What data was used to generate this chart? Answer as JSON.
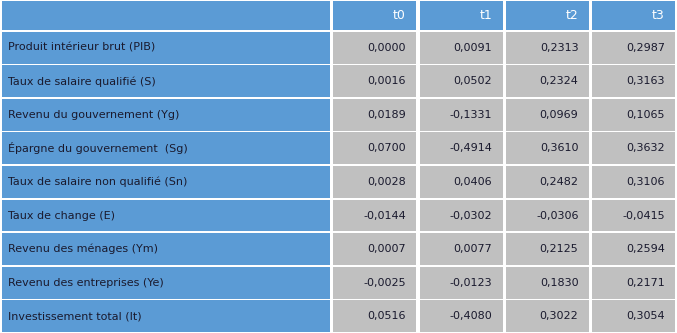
{
  "columns": [
    "",
    "t0",
    "t1",
    "t2",
    "t3"
  ],
  "rows": [
    [
      "Produit intérieur brut (PIB)",
      "0,0000",
      "0,0091",
      "0,2313",
      "0,2987"
    ],
    [
      "Taux de salaire qualifié (S)",
      "0,0016",
      "0,0502",
      "0,2324",
      "0,3163"
    ],
    [
      "Revenu du gouvernement (Yg)",
      "0,0189",
      "-0,1331",
      "0,0969",
      "0,1065"
    ],
    [
      "Épargne du gouvernement  (Sg)",
      "0,0700",
      "-0,4914",
      "0,3610",
      "0,3632"
    ],
    [
      "Taux de salaire non qualifié (Sn)",
      "0,0028",
      "0,0406",
      "0,2482",
      "0,3106"
    ],
    [
      "Taux de change (E)",
      "-0,0144",
      "-0,0302",
      "-0,0306",
      "-0,0415"
    ],
    [
      "Revenu des ménages (Ym)",
      "0,0007",
      "0,0077",
      "0,2125",
      "0,2594"
    ],
    [
      "Revenu des entreprises (Ye)",
      "-0,0025",
      "-0,0123",
      "0,1830",
      "0,2171"
    ],
    [
      "Investissement total (It)",
      "0,0516",
      "-0,4080",
      "0,3022",
      "0,3054"
    ]
  ],
  "header_bg": "#5B9BD5",
  "header_text_color": "#FFFFFF",
  "label_col_bg": "#5B9BD5",
  "label_col_text_color": "#1a1a2e",
  "data_cell_bg": "#C0C0C0",
  "data_cell_text_color": "#1a1a2e",
  "separator_color": "#FFFFFF",
  "figsize": [
    6.77,
    3.33
  ],
  "dpi": 100,
  "font_size": 8.0,
  "header_font_size": 9.0
}
